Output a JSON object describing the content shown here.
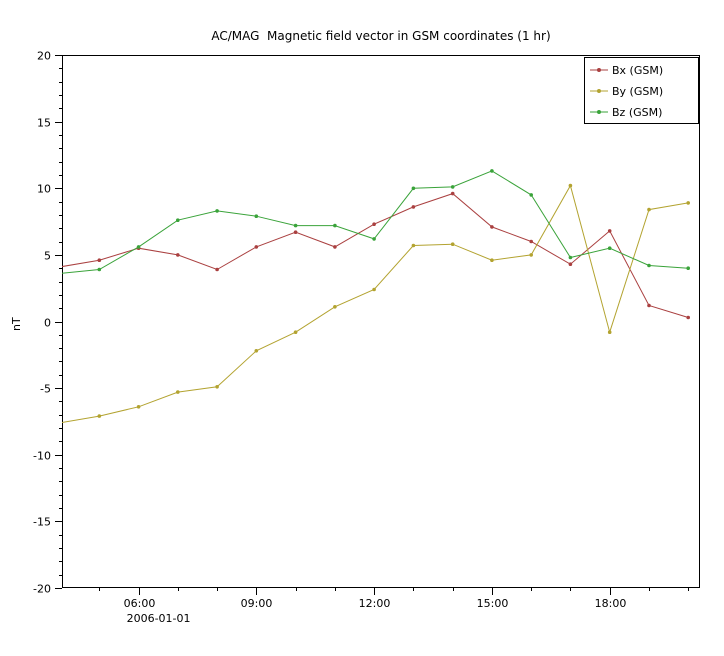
{
  "chart_data": {
    "type": "line",
    "title": "AC/MAG  Magnetic field vector in GSM coordinates (1 hr)",
    "ylabel": "nT",
    "date_label": "2006-01-01",
    "grid": false,
    "legend_position": "top-right",
    "xlim_hours": [
      4.05,
      20.3
    ],
    "ylim": [
      -20,
      20
    ],
    "xticks_major": [
      {
        "hour": 6,
        "label": "06:00"
      },
      {
        "hour": 9,
        "label": "09:00"
      },
      {
        "hour": 12,
        "label": "12:00"
      },
      {
        "hour": 15,
        "label": "15:00"
      },
      {
        "hour": 18,
        "label": "18:00"
      }
    ],
    "xticks_minor_hours": [
      5,
      7,
      8,
      10,
      11,
      13,
      14,
      16,
      17,
      19,
      20
    ],
    "yticks_major": [
      {
        "value": 20,
        "label": "20"
      },
      {
        "value": 15,
        "label": "15"
      },
      {
        "value": 10,
        "label": "10"
      },
      {
        "value": 5,
        "label": "5"
      },
      {
        "value": 0,
        "label": "0"
      },
      {
        "value": -5,
        "label": "-5"
      },
      {
        "value": -10,
        "label": "-10"
      },
      {
        "value": -15,
        "label": "-15"
      },
      {
        "value": -20,
        "label": "-20"
      }
    ],
    "x_hours": [
      4,
      5,
      6,
      7,
      8,
      9,
      10,
      11,
      12,
      13,
      14,
      15,
      16,
      17,
      18,
      19,
      20
    ],
    "series": [
      {
        "name": "Bx (GSM)",
        "color": "#aa4040",
        "values": [
          4.1,
          4.6,
          5.5,
          5.0,
          3.9,
          5.6,
          6.7,
          5.6,
          7.3,
          8.6,
          9.6,
          7.1,
          6.0,
          4.3,
          6.8,
          1.2,
          0.3
        ]
      },
      {
        "name": "By (GSM)",
        "color": "#b3a330",
        "values": [
          -7.6,
          -7.1,
          -6.4,
          -5.3,
          -4.9,
          -2.2,
          -0.8,
          1.1,
          2.4,
          5.7,
          5.8,
          4.6,
          5.0,
          10.2,
          -0.8,
          8.4,
          8.9
        ]
      },
      {
        "name": "Bz (GSM)",
        "color": "#3aa33a",
        "values": [
          3.6,
          3.9,
          5.6,
          7.6,
          8.3,
          7.9,
          7.2,
          7.2,
          6.2,
          10.0,
          10.1,
          11.3,
          9.5,
          4.8,
          5.5,
          4.2,
          4.0
        ]
      }
    ],
    "axis_color": "#000000",
    "background_color": "#ffffff"
  }
}
